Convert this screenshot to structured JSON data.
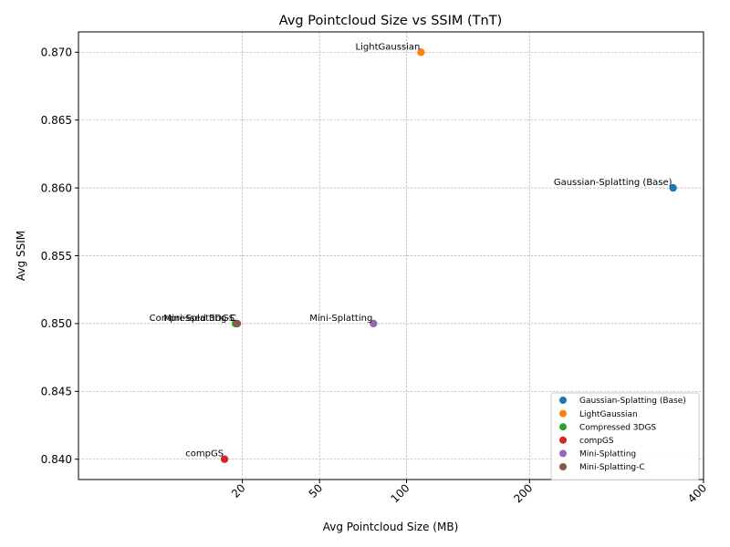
{
  "chart_data": {
    "type": "scatter",
    "title": "Avg Pointcloud Size vs SSIM (TnT)",
    "xlabel": "Avg Pointcloud Size (MB)",
    "ylabel": "Avg SSIM",
    "xscale": "sqrt",
    "xlim": [
      0,
      400
    ],
    "ylim": [
      0.8385,
      0.8715
    ],
    "x_ticks": [
      20,
      50,
      100,
      200,
      400
    ],
    "y_ticks": [
      0.84,
      0.845,
      0.85,
      0.855,
      0.86,
      0.865,
      0.87
    ],
    "y_tick_labels": [
      "0.840",
      "0.845",
      "0.850",
      "0.855",
      "0.860",
      "0.865",
      "0.870"
    ],
    "grid": true,
    "legend_position": "lower-right",
    "series": [
      {
        "name": "Gaussian-Splatting (Base)",
        "color": "#1f77b4",
        "x": 360,
        "y": 0.86
      },
      {
        "name": "LightGaussian",
        "color": "#ff7f0e",
        "x": 110,
        "y": 0.87
      },
      {
        "name": "Compressed 3DGS",
        "color": "#2ca02c",
        "x": 18,
        "y": 0.85
      },
      {
        "name": "compGS",
        "color": "#d62728",
        "x": 15,
        "y": 0.84
      },
      {
        "name": "Mini-Splatting",
        "color": "#9467bd",
        "x": 79,
        "y": 0.85
      },
      {
        "name": "Mini-Splatting-C",
        "color": "#8c564b",
        "x": 18.5,
        "y": 0.85
      }
    ]
  }
}
